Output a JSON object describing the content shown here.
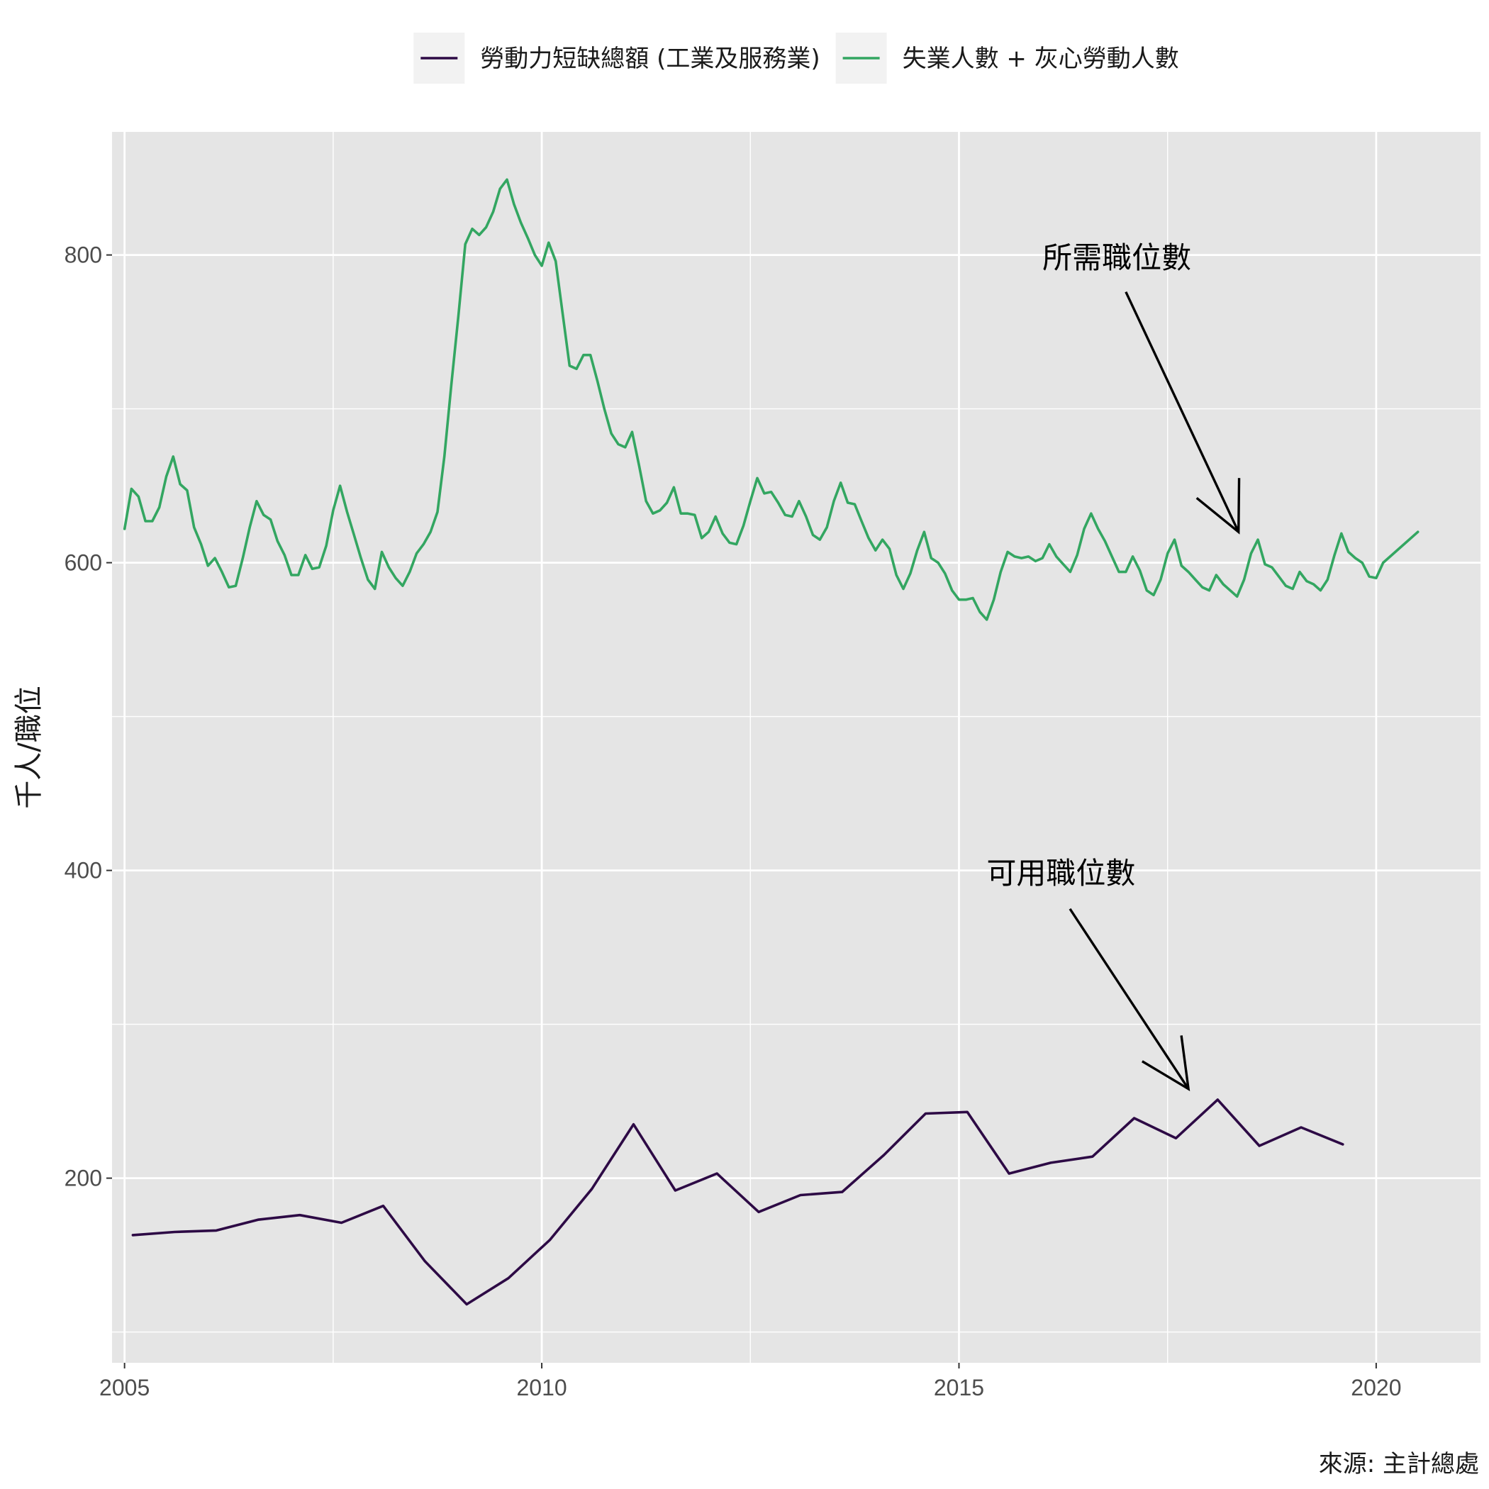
{
  "chart_data": {
    "type": "line",
    "xlabel": "",
    "ylabel": "千人/職位",
    "caption": "來源: 主計總處",
    "xlim": [
      2004.85,
      2021.25
    ],
    "ylim": [
      80,
      880
    ],
    "x_ticks": [
      2005,
      2010,
      2015,
      2020
    ],
    "x_tick_labels": [
      "2005",
      "2010",
      "2015",
      "2020"
    ],
    "y_ticks": [
      200,
      400,
      600,
      800
    ],
    "y_tick_labels": [
      "200",
      "400",
      "600",
      "800"
    ],
    "grid": true,
    "legend_position": "top",
    "colors": {
      "panel": "#e5e5e5",
      "grid": "#ffffff",
      "shortage": "#2d0a45",
      "unemployed": "#33a661"
    },
    "series": [
      {
        "name": "勞動力短缺總額 (工業及服務業)",
        "color": "#2d0a45",
        "x": [
          2005.1,
          2005.6,
          2006.1,
          2006.6,
          2007.1,
          2007.6,
          2008.1,
          2008.6,
          2009.1,
          2009.6,
          2010.1,
          2010.6,
          2011.1,
          2011.6,
          2012.1,
          2012.6,
          2013.1,
          2013.6,
          2014.1,
          2014.6,
          2015.1,
          2015.6,
          2016.1,
          2016.6,
          2017.1,
          2017.6,
          2018.1,
          2018.6,
          2019.1,
          2019.6
        ],
        "values": [
          163,
          165,
          166,
          173,
          176,
          171,
          182,
          146,
          118,
          135,
          160,
          193,
          235,
          192,
          203,
          178,
          189,
          191,
          215,
          242,
          243,
          203,
          210,
          214,
          239,
          226,
          251,
          221,
          233,
          222
        ]
      },
      {
        "name": "失業人數 + 灰心勞動人數",
        "color": "#33a661",
        "x": [
          2005.0,
          2005.083,
          2005.167,
          2005.25,
          2005.333,
          2005.417,
          2005.5,
          2005.583,
          2005.667,
          2005.75,
          2005.833,
          2005.917,
          2006.0,
          2006.083,
          2006.167,
          2006.25,
          2006.333,
          2006.417,
          2006.5,
          2006.583,
          2006.667,
          2006.75,
          2006.833,
          2006.917,
          2007.0,
          2007.083,
          2007.167,
          2007.25,
          2007.333,
          2007.417,
          2007.5,
          2007.583,
          2007.667,
          2007.75,
          2007.833,
          2007.917,
          2008.0,
          2008.083,
          2008.167,
          2008.25,
          2008.333,
          2008.417,
          2008.5,
          2008.583,
          2008.667,
          2008.75,
          2008.833,
          2008.917,
          2009.0,
          2009.083,
          2009.167,
          2009.25,
          2009.333,
          2009.417,
          2009.5,
          2009.583,
          2009.667,
          2009.75,
          2009.833,
          2009.917,
          2010.0,
          2010.083,
          2010.167,
          2010.25,
          2010.333,
          2010.417,
          2010.5,
          2010.583,
          2010.667,
          2010.75,
          2010.833,
          2010.917,
          2011.0,
          2011.083,
          2011.167,
          2011.25,
          2011.333,
          2011.417,
          2011.5,
          2011.583,
          2011.667,
          2011.75,
          2011.833,
          2011.917,
          2012.0,
          2012.083,
          2012.167,
          2012.25,
          2012.333,
          2012.417,
          2012.5,
          2012.583,
          2012.667,
          2012.75,
          2012.833,
          2012.917,
          2013.0,
          2013.083,
          2013.167,
          2013.25,
          2013.333,
          2013.417,
          2013.5,
          2013.583,
          2013.667,
          2013.75,
          2013.833,
          2013.917,
          2014.0,
          2014.083,
          2014.167,
          2014.25,
          2014.333,
          2014.417,
          2014.5,
          2014.583,
          2014.667,
          2014.75,
          2014.833,
          2014.917,
          2015.0,
          2015.083,
          2015.167,
          2015.25,
          2015.333,
          2015.417,
          2015.5,
          2015.583,
          2015.667,
          2015.75,
          2015.833,
          2015.917,
          2016.0,
          2016.083,
          2016.167,
          2016.25,
          2016.333,
          2016.417,
          2016.5,
          2016.583,
          2016.667,
          2016.75,
          2016.833,
          2016.917,
          2017.0,
          2017.083,
          2017.167,
          2017.25,
          2017.333,
          2017.417,
          2017.5,
          2017.583,
          2017.667,
          2017.75,
          2017.833,
          2017.917,
          2018.0,
          2018.083,
          2018.167,
          2018.25,
          2018.333,
          2018.417,
          2018.5,
          2018.583,
          2018.667,
          2018.75,
          2018.833,
          2018.917,
          2019.0,
          2019.083,
          2019.167,
          2019.25,
          2019.333,
          2019.417,
          2019.5,
          2019.583,
          2019.667,
          2019.75,
          2019.833,
          2019.917,
          2020.0,
          2020.083,
          2020.5
        ],
        "values": [
          622,
          648,
          643,
          627,
          627,
          636,
          656,
          669,
          651,
          647,
          623,
          612,
          598,
          603,
          594,
          584,
          585,
          603,
          623,
          640,
          631,
          628,
          614,
          605,
          592,
          592,
          605,
          596,
          597,
          611,
          634,
          650,
          633,
          618,
          603,
          589,
          583,
          607,
          597,
          590,
          585,
          594,
          606,
          612,
          620,
          633,
          669,
          716,
          760,
          807,
          817,
          813,
          818,
          828,
          843,
          849,
          833,
          821,
          811,
          800,
          793,
          808,
          796,
          762,
          728,
          726,
          735,
          735,
          718,
          700,
          684,
          677,
          675,
          685,
          663,
          640,
          632,
          634,
          639,
          649,
          632,
          632,
          631,
          616,
          620,
          630,
          619,
          613,
          612,
          624,
          640,
          655,
          645,
          646,
          639,
          631,
          630,
          640,
          630,
          618,
          615,
          623,
          640,
          652,
          639,
          638,
          627,
          616,
          608,
          615,
          609,
          592,
          583,
          593,
          608,
          620,
          603,
          600,
          593,
          582,
          576,
          576,
          577,
          568,
          563,
          576,
          594,
          607,
          604,
          603,
          604,
          601,
          603,
          612,
          604,
          599,
          594,
          605,
          622,
          632,
          622,
          614,
          604,
          594,
          594,
          604,
          595,
          582,
          579,
          589,
          606,
          615,
          598,
          594,
          589,
          584,
          582,
          592,
          586,
          582,
          578,
          589,
          606,
          615,
          599,
          597,
          591,
          585,
          583,
          594,
          588,
          586,
          582,
          589,
          605,
          619,
          607,
          603,
          600,
          591,
          590,
          600,
          620
        ]
      }
    ],
    "annotations": [
      {
        "text": "所需職位數",
        "text_at": [
          2016.0,
          798
        ],
        "arrow_from": [
          2017.0,
          776
        ],
        "arrow_to": [
          2018.35,
          620
        ]
      },
      {
        "text": "可用職位數",
        "text_at": [
          2015.33,
          398
        ],
        "arrow_from": [
          2016.33,
          375
        ],
        "arrow_to": [
          2017.75,
          258
        ]
      }
    ]
  }
}
